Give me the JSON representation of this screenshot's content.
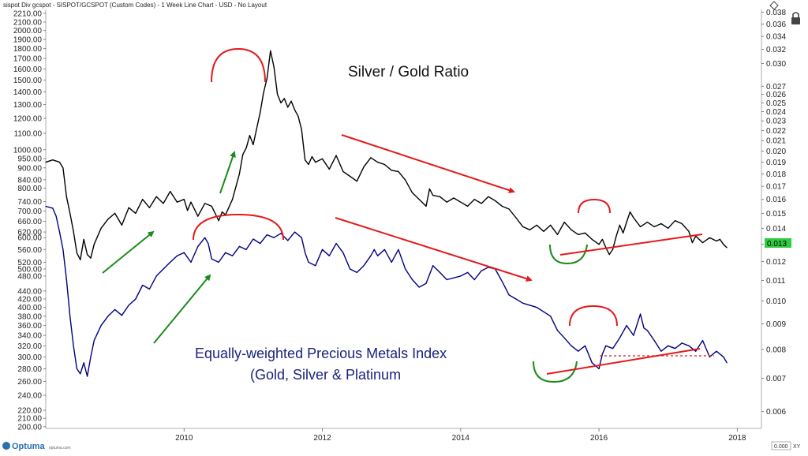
{
  "header": {
    "title": "sispot Div gcspot - SISPOT/GCSPOT (Custom Codes) - 1 Week Line Chart - USD - No Layout"
  },
  "chart_data": {
    "type": "line",
    "x_ticks": [
      "2010",
      "2012",
      "2014",
      "2016",
      "2018"
    ],
    "x_ticks_numeric": [
      2010,
      2012,
      2014,
      2016,
      2018
    ],
    "xlim": [
      2008.0,
      2018.35
    ],
    "left_axis": {
      "scale": "log",
      "ticks": [
        "2210.00",
        "2100.00",
        "2000.00",
        "1900.00",
        "1800.00",
        "1700.00",
        "1600.00",
        "1500.00",
        "1400.00",
        "1300.00",
        "1200.00",
        "1100.00",
        "1000.00",
        "950.00",
        "900.00",
        "840.00",
        "800.00",
        "740.00",
        "700.00",
        "660.00",
        "620.00",
        "600.00",
        "560.00",
        "520.00",
        "500.00",
        "480.00",
        "440.00",
        "420.00",
        "400.00",
        "380.00",
        "360.00",
        "340.00",
        "320.00",
        "300.00",
        "280.00",
        "260.00",
        "240.00",
        "220.00",
        "210.00",
        "200.00"
      ],
      "ylim": [
        198,
        2260
      ]
    },
    "right_axis": {
      "scale": "log",
      "ticks": [
        "0.038",
        "0.036",
        "0.034",
        "0.032",
        "0.030",
        "0.027",
        "0.026",
        "0.025",
        "0.024",
        "0.023",
        "0.022",
        "0.021",
        "0.020",
        "0.019",
        "0.018",
        "0.017",
        "0.016",
        "0.015",
        "0.014",
        "0.013",
        "0.012",
        "0.011",
        "0.010",
        "0.009",
        "0.008",
        "0.007",
        "0.006"
      ],
      "ylim": [
        0.00555,
        0.0385
      ]
    },
    "series": [
      {
        "name": "Silver / Gold Ratio",
        "axis": "right",
        "color": "#000000",
        "points": [
          [
            2008.0,
            0.019
          ],
          [
            2008.1,
            0.0192
          ],
          [
            2008.2,
            0.019
          ],
          [
            2008.25,
            0.0185
          ],
          [
            2008.3,
            0.0162
          ],
          [
            2008.35,
            0.015
          ],
          [
            2008.4,
            0.0138
          ],
          [
            2008.45,
            0.0125
          ],
          [
            2008.5,
            0.0121
          ],
          [
            2008.55,
            0.0133
          ],
          [
            2008.6,
            0.0124
          ],
          [
            2008.65,
            0.0122
          ],
          [
            2008.7,
            0.013
          ],
          [
            2008.8,
            0.014
          ],
          [
            2008.9,
            0.0146
          ],
          [
            2009.0,
            0.015
          ],
          [
            2009.1,
            0.0142
          ],
          [
            2009.2,
            0.0154
          ],
          [
            2009.3,
            0.015
          ],
          [
            2009.4,
            0.016
          ],
          [
            2009.5,
            0.0154
          ],
          [
            2009.6,
            0.0162
          ],
          [
            2009.7,
            0.0157
          ],
          [
            2009.8,
            0.0166
          ],
          [
            2009.9,
            0.0158
          ],
          [
            2010.0,
            0.016
          ],
          [
            2010.05,
            0.0152
          ],
          [
            2010.1,
            0.0158
          ],
          [
            2010.2,
            0.0148
          ],
          [
            2010.3,
            0.0157
          ],
          [
            2010.4,
            0.0155
          ],
          [
            2010.5,
            0.0145
          ],
          [
            2010.55,
            0.0151
          ],
          [
            2010.6,
            0.0149
          ],
          [
            2010.7,
            0.016
          ],
          [
            2010.8,
            0.018
          ],
          [
            2010.85,
            0.0197
          ],
          [
            2010.9,
            0.0203
          ],
          [
            2010.95,
            0.0215
          ],
          [
            2011.0,
            0.0206
          ],
          [
            2011.05,
            0.0222
          ],
          [
            2011.1,
            0.0239
          ],
          [
            2011.15,
            0.0262
          ],
          [
            2011.2,
            0.028
          ],
          [
            2011.25,
            0.0318
          ],
          [
            2011.3,
            0.0295
          ],
          [
            2011.35,
            0.026
          ],
          [
            2011.4,
            0.025
          ],
          [
            2011.45,
            0.0255
          ],
          [
            2011.5,
            0.0245
          ],
          [
            2011.55,
            0.0252
          ],
          [
            2011.6,
            0.0242
          ],
          [
            2011.65,
            0.0235
          ],
          [
            2011.7,
            0.0221
          ],
          [
            2011.75,
            0.0192
          ],
          [
            2011.8,
            0.0188
          ],
          [
            2011.85,
            0.0195
          ],
          [
            2011.9,
            0.019
          ],
          [
            2012.0,
            0.0193
          ],
          [
            2012.1,
            0.0184
          ],
          [
            2012.2,
            0.0196
          ],
          [
            2012.3,
            0.0182
          ],
          [
            2012.4,
            0.0178
          ],
          [
            2012.5,
            0.0174
          ],
          [
            2012.6,
            0.0186
          ],
          [
            2012.7,
            0.0194
          ],
          [
            2012.8,
            0.019
          ],
          [
            2012.9,
            0.0188
          ],
          [
            2013.0,
            0.0183
          ],
          [
            2013.1,
            0.0182
          ],
          [
            2013.2,
            0.0175
          ],
          [
            2013.3,
            0.0165
          ],
          [
            2013.4,
            0.016
          ],
          [
            2013.5,
            0.0155
          ],
          [
            2013.55,
            0.0168
          ],
          [
            2013.6,
            0.0163
          ],
          [
            2013.7,
            0.0162
          ],
          [
            2013.8,
            0.0158
          ],
          [
            2013.9,
            0.0161
          ],
          [
            2014.0,
            0.0158
          ],
          [
            2014.1,
            0.0155
          ],
          [
            2014.2,
            0.016
          ],
          [
            2014.3,
            0.0157
          ],
          [
            2014.4,
            0.0162
          ],
          [
            2014.5,
            0.0159
          ],
          [
            2014.6,
            0.0155
          ],
          [
            2014.7,
            0.0153
          ],
          [
            2014.8,
            0.0147
          ],
          [
            2014.9,
            0.0141
          ],
          [
            2015.0,
            0.0139
          ],
          [
            2015.1,
            0.0142
          ],
          [
            2015.2,
            0.0138
          ],
          [
            2015.3,
            0.0142
          ],
          [
            2015.4,
            0.0136
          ],
          [
            2015.5,
            0.0144
          ],
          [
            2015.6,
            0.0139
          ],
          [
            2015.7,
            0.0136
          ],
          [
            2015.8,
            0.0137
          ],
          [
            2015.9,
            0.0133
          ],
          [
            2016.0,
            0.013
          ],
          [
            2016.05,
            0.0133
          ],
          [
            2016.1,
            0.0128
          ],
          [
            2016.15,
            0.0124
          ],
          [
            2016.2,
            0.0127
          ],
          [
            2016.25,
            0.0135
          ],
          [
            2016.3,
            0.0142
          ],
          [
            2016.35,
            0.0137
          ],
          [
            2016.4,
            0.0144
          ],
          [
            2016.45,
            0.0151
          ],
          [
            2016.5,
            0.0147
          ],
          [
            2016.6,
            0.0141
          ],
          [
            2016.7,
            0.0144
          ],
          [
            2016.8,
            0.0141
          ],
          [
            2016.9,
            0.0143
          ],
          [
            2017.0,
            0.014
          ],
          [
            2017.1,
            0.0145
          ],
          [
            2017.2,
            0.0143
          ],
          [
            2017.3,
            0.0138
          ],
          [
            2017.35,
            0.0131
          ],
          [
            2017.4,
            0.0135
          ],
          [
            2017.5,
            0.0131
          ],
          [
            2017.6,
            0.0134
          ],
          [
            2017.7,
            0.0132
          ],
          [
            2017.75,
            0.0133
          ],
          [
            2017.8,
            0.013
          ],
          [
            2017.85,
            0.0128
          ]
        ]
      },
      {
        "name": "Equally-weighted Precious Metals Index (Gold, Silver & Platinum",
        "axis": "left",
        "color": "#000080",
        "points": [
          [
            2008.0,
            720
          ],
          [
            2008.1,
            712
          ],
          [
            2008.15,
            680
          ],
          [
            2008.2,
            620
          ],
          [
            2008.25,
            560
          ],
          [
            2008.3,
            470
          ],
          [
            2008.35,
            380
          ],
          [
            2008.4,
            320
          ],
          [
            2008.45,
            280
          ],
          [
            2008.5,
            272
          ],
          [
            2008.55,
            290
          ],
          [
            2008.6,
            268
          ],
          [
            2008.65,
            300
          ],
          [
            2008.7,
            330
          ],
          [
            2008.8,
            360
          ],
          [
            2008.9,
            380
          ],
          [
            2009.0,
            395
          ],
          [
            2009.1,
            382
          ],
          [
            2009.2,
            405
          ],
          [
            2009.3,
            420
          ],
          [
            2009.4,
            455
          ],
          [
            2009.5,
            445
          ],
          [
            2009.6,
            480
          ],
          [
            2009.7,
            500
          ],
          [
            2009.8,
            520
          ],
          [
            2009.9,
            540
          ],
          [
            2010.0,
            550
          ],
          [
            2010.1,
            520
          ],
          [
            2010.2,
            570
          ],
          [
            2010.3,
            600
          ],
          [
            2010.35,
            580
          ],
          [
            2010.4,
            530
          ],
          [
            2010.5,
            520
          ],
          [
            2010.6,
            550
          ],
          [
            2010.7,
            540
          ],
          [
            2010.8,
            570
          ],
          [
            2010.9,
            560
          ],
          [
            2011.0,
            595
          ],
          [
            2011.1,
            580
          ],
          [
            2011.2,
            610
          ],
          [
            2011.3,
            600
          ],
          [
            2011.4,
            615
          ],
          [
            2011.5,
            590
          ],
          [
            2011.6,
            620
          ],
          [
            2011.7,
            600
          ],
          [
            2011.75,
            550
          ],
          [
            2011.8,
            520
          ],
          [
            2011.9,
            510
          ],
          [
            2012.0,
            560
          ],
          [
            2012.1,
            540
          ],
          [
            2012.2,
            580
          ],
          [
            2012.3,
            550
          ],
          [
            2012.4,
            500
          ],
          [
            2012.5,
            490
          ],
          [
            2012.6,
            510
          ],
          [
            2012.7,
            540
          ],
          [
            2012.75,
            560
          ],
          [
            2012.8,
            540
          ],
          [
            2012.9,
            560
          ],
          [
            2013.0,
            520
          ],
          [
            2013.1,
            560
          ],
          [
            2013.2,
            500
          ],
          [
            2013.3,
            470
          ],
          [
            2013.4,
            450
          ],
          [
            2013.5,
            460
          ],
          [
            2013.6,
            510
          ],
          [
            2013.7,
            490
          ],
          [
            2013.8,
            470
          ],
          [
            2014.0,
            480
          ],
          [
            2014.1,
            490
          ],
          [
            2014.2,
            470
          ],
          [
            2014.3,
            495
          ],
          [
            2014.4,
            505
          ],
          [
            2014.5,
            500
          ],
          [
            2014.6,
            465
          ],
          [
            2014.7,
            430
          ],
          [
            2014.8,
            420
          ],
          [
            2014.9,
            410
          ],
          [
            2015.0,
            405
          ],
          [
            2015.1,
            400
          ],
          [
            2015.2,
            390
          ],
          [
            2015.3,
            380
          ],
          [
            2015.4,
            350
          ],
          [
            2015.5,
            335
          ],
          [
            2015.6,
            320
          ],
          [
            2015.7,
            310
          ],
          [
            2015.8,
            320
          ],
          [
            2015.9,
            290
          ],
          [
            2016.0,
            280
          ],
          [
            2016.05,
            305
          ],
          [
            2016.1,
            320
          ],
          [
            2016.2,
            315
          ],
          [
            2016.3,
            335
          ],
          [
            2016.4,
            360
          ],
          [
            2016.5,
            340
          ],
          [
            2016.6,
            385
          ],
          [
            2016.65,
            355
          ],
          [
            2016.7,
            350
          ],
          [
            2016.8,
            330
          ],
          [
            2016.9,
            310
          ],
          [
            2017.0,
            320
          ],
          [
            2017.1,
            315
          ],
          [
            2017.2,
            325
          ],
          [
            2017.3,
            320
          ],
          [
            2017.4,
            310
          ],
          [
            2017.5,
            330
          ],
          [
            2017.6,
            300
          ],
          [
            2017.7,
            310
          ],
          [
            2017.75,
            305
          ],
          [
            2017.8,
            300
          ],
          [
            2017.85,
            290
          ]
        ]
      }
    ],
    "annotations": {
      "ratio_label": "Silver / Gold Ratio",
      "index_label_line1": "Equally-weighted Precious Metals Index",
      "index_label_line2": "(Gold, Silver & Platinum",
      "last_value_badge": "0.013",
      "colors": {
        "ratio_line": "#000000",
        "index_line": "#000080",
        "red_mark": "#e31a1c",
        "green_mark": "#1a8a1a",
        "badge": "#2ecc40"
      }
    }
  },
  "footer": {
    "brand": "Optuma",
    "brand_url": "optuma.com",
    "xy_box": "0.000",
    "xy_label": "XY"
  }
}
